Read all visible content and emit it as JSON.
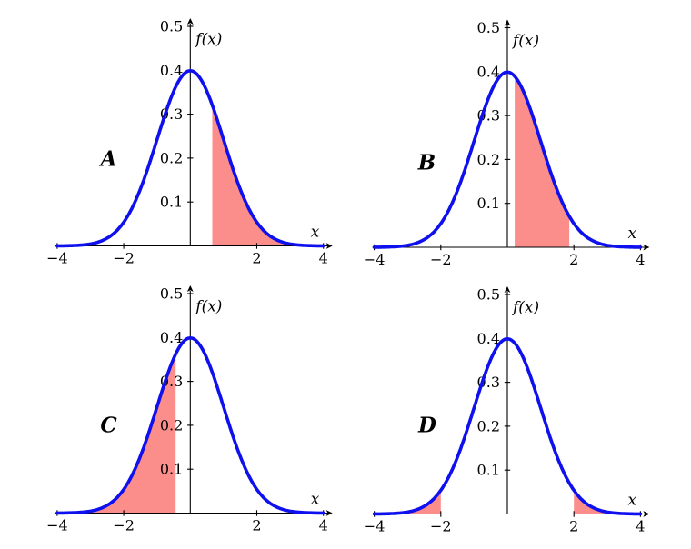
{
  "figure": {
    "colors": {
      "curve": "#0f10ee",
      "region": "#fb8d8b",
      "axis": "#000000",
      "text": "#000000",
      "background": "#ffffff"
    }
  },
  "chart_data": [
    {
      "id": "A",
      "type": "area",
      "label": "A",
      "xlabel": "x",
      "ylabel": "f(x)",
      "x_range": [
        -4,
        4
      ],
      "y_range": [
        0,
        0.5
      ],
      "x_ticks": [
        -4,
        -2,
        2,
        4
      ],
      "x_tick_labels": [
        "−4",
        "−2",
        "2",
        "4"
      ],
      "y_ticks": [
        0.1,
        0.2,
        0.3,
        0.4,
        0.5
      ],
      "y_tick_labels": [
        "0.1",
        "0.2",
        "0.3",
        "0.4",
        "0.5"
      ],
      "gaussian": {
        "mean": 0,
        "sigma": 1,
        "peak": 0.3989
      },
      "shaded_regions": [
        [
          0.66,
          4
        ]
      ]
    },
    {
      "id": "B",
      "type": "area",
      "label": "B",
      "xlabel": "x",
      "ylabel": "f(x)",
      "x_range": [
        -4,
        4
      ],
      "y_range": [
        0,
        0.5
      ],
      "x_ticks": [
        -4,
        -2,
        2,
        4
      ],
      "x_tick_labels": [
        "−4",
        "−2",
        "2",
        "4"
      ],
      "y_ticks": [
        0.1,
        0.2,
        0.3,
        0.4,
        0.5
      ],
      "y_tick_labels": [
        "0.1",
        "0.2",
        "0.3",
        "0.4",
        "0.5"
      ],
      "gaussian": {
        "mean": 0,
        "sigma": 1,
        "peak": 0.3989
      },
      "shaded_regions": [
        [
          0.22,
          1.86
        ]
      ]
    },
    {
      "id": "C",
      "type": "area",
      "label": "C",
      "xlabel": "x",
      "ylabel": "f(x)",
      "x_range": [
        -4,
        4
      ],
      "y_range": [
        0,
        0.5
      ],
      "x_ticks": [
        -4,
        -2,
        2,
        4
      ],
      "x_tick_labels": [
        "−4",
        "−2",
        "2",
        "4"
      ],
      "y_ticks": [
        0.1,
        0.2,
        0.3,
        0.4,
        0.5
      ],
      "y_tick_labels": [
        "0.1",
        "0.2",
        "0.3",
        "0.4",
        "0.5"
      ],
      "gaussian": {
        "mean": 0,
        "sigma": 1,
        "peak": 0.3989
      },
      "shaded_regions": [
        [
          -4,
          -0.44
        ]
      ]
    },
    {
      "id": "D",
      "type": "area",
      "label": "D",
      "xlabel": "x",
      "ylabel": "f(x)",
      "x_range": [
        -4,
        4
      ],
      "y_range": [
        0,
        0.5
      ],
      "x_ticks": [
        -4,
        -2,
        2,
        4
      ],
      "x_tick_labels": [
        "−4",
        "−2",
        "2",
        "4"
      ],
      "y_ticks": [
        0.1,
        0.2,
        0.3,
        0.4,
        0.5
      ],
      "y_tick_labels": [
        "0.1",
        "0.2",
        "0.3",
        "0.4",
        "0.5"
      ],
      "gaussian": {
        "mean": 0,
        "sigma": 1,
        "peak": 0.3989
      },
      "shaded_regions": [
        [
          -4,
          -2
        ],
        [
          2,
          4
        ]
      ]
    }
  ]
}
